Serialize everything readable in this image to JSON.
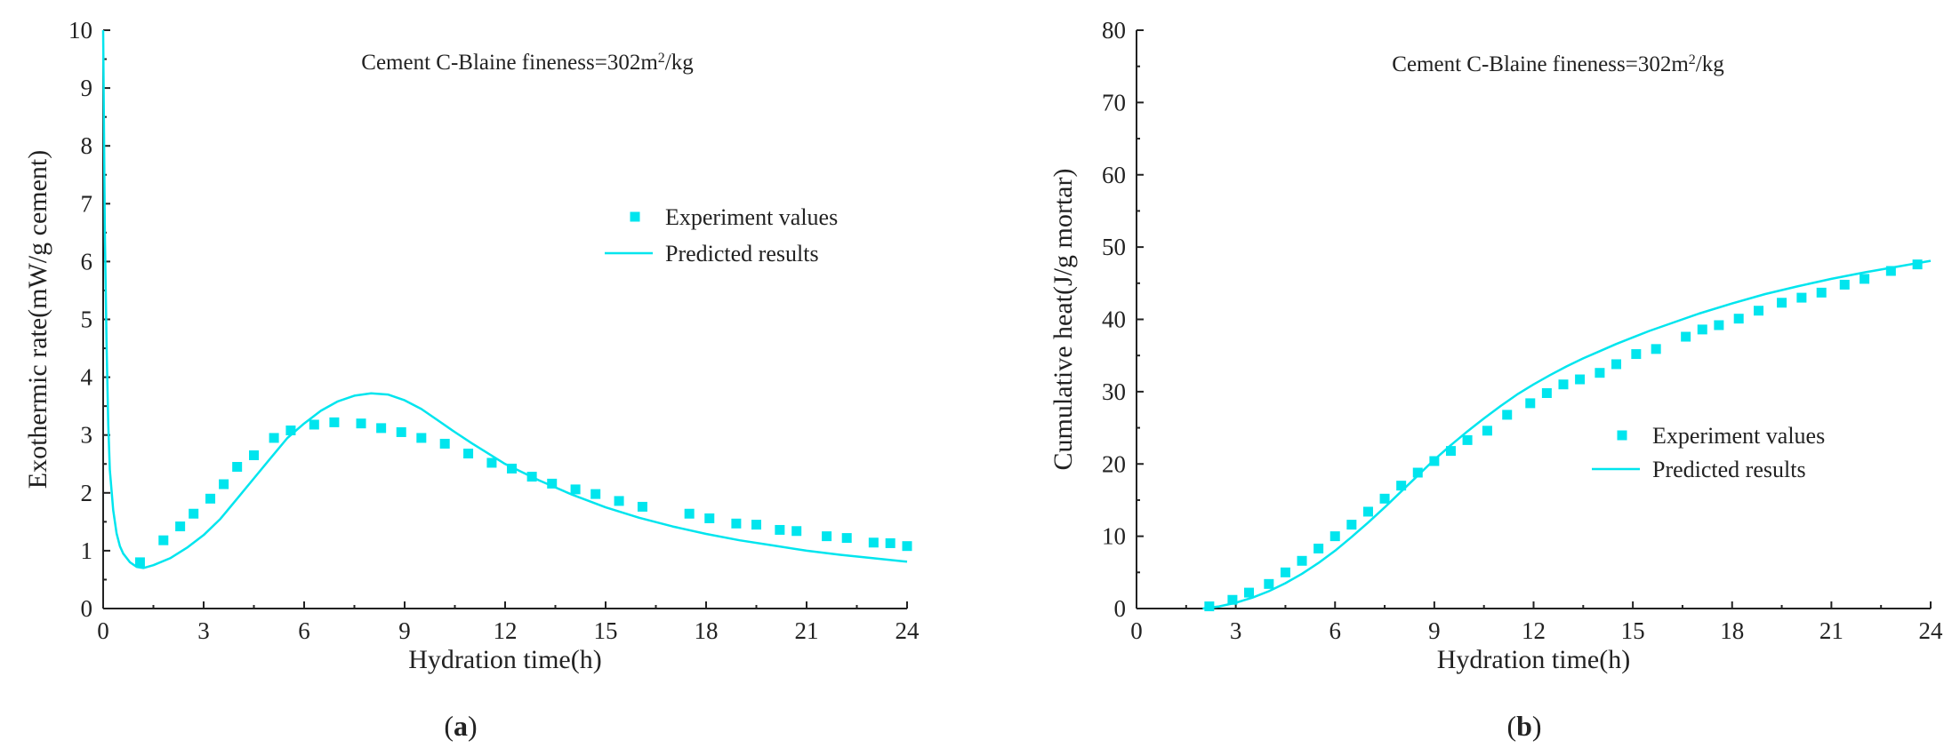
{
  "chart_data": [
    {
      "type": "scatter+line",
      "panel": "a",
      "panel_label": "a",
      "title_prefix": "Cement C-Blaine fineness=302m",
      "title_sup": "2",
      "title_suffix": "/kg",
      "xlabel": "Hydration time(h)",
      "ylabel": "Exothermic rate(mW/g cement)",
      "xlim": [
        0,
        24
      ],
      "ylim": [
        0,
        10
      ],
      "xticks": [
        0,
        3,
        6,
        9,
        12,
        15,
        18,
        21,
        24
      ],
      "yticks": [
        0,
        1,
        2,
        3,
        4,
        5,
        6,
        7,
        8,
        9,
        10
      ],
      "legend": {
        "position": "center-right",
        "entries": [
          "Experiment values",
          "Predicted results"
        ]
      },
      "colors": {
        "series": "#00e5ee",
        "axis": "#222222"
      },
      "series": [
        {
          "name": "Experiment values",
          "kind": "markers",
          "x": [
            1.1,
            1.8,
            2.3,
            2.7,
            3.2,
            3.6,
            4.0,
            4.5,
            5.1,
            5.6,
            6.3,
            6.9,
            7.7,
            8.3,
            8.9,
            9.5,
            10.2,
            10.9,
            11.6,
            12.2,
            12.8,
            13.4,
            14.1,
            14.7,
            15.4,
            16.1,
            17.5,
            18.1,
            18.9,
            19.5,
            20.2,
            20.7,
            21.6,
            22.2,
            23.0,
            23.5,
            24.0
          ],
          "y": [
            0.8,
            1.18,
            1.42,
            1.64,
            1.9,
            2.15,
            2.45,
            2.65,
            2.95,
            3.08,
            3.18,
            3.22,
            3.2,
            3.12,
            3.05,
            2.95,
            2.85,
            2.68,
            2.52,
            2.42,
            2.28,
            2.16,
            2.06,
            1.98,
            1.86,
            1.76,
            1.64,
            1.56,
            1.47,
            1.45,
            1.36,
            1.34,
            1.25,
            1.22,
            1.14,
            1.13,
            1.08
          ]
        },
        {
          "name": "Predicted results",
          "kind": "line",
          "x": [
            0.0,
            0.05,
            0.1,
            0.15,
            0.2,
            0.3,
            0.4,
            0.5,
            0.6,
            0.8,
            1.0,
            1.2,
            1.5,
            2.0,
            2.5,
            3.0,
            3.5,
            4.0,
            4.5,
            5.0,
            5.5,
            6.0,
            6.5,
            7.0,
            7.5,
            8.0,
            8.5,
            9.0,
            9.5,
            10.0,
            10.5,
            11.0,
            12.0,
            13.0,
            14.0,
            15.0,
            16.0,
            17.0,
            18.0,
            19.0,
            20.0,
            21.0,
            22.0,
            23.0,
            24.0
          ],
          "y": [
            10.0,
            6.5,
            4.6,
            3.2,
            2.4,
            1.7,
            1.3,
            1.08,
            0.95,
            0.8,
            0.72,
            0.7,
            0.75,
            0.87,
            1.05,
            1.27,
            1.55,
            1.9,
            2.25,
            2.6,
            2.95,
            3.2,
            3.42,
            3.58,
            3.68,
            3.72,
            3.7,
            3.6,
            3.45,
            3.25,
            3.05,
            2.86,
            2.5,
            2.22,
            1.97,
            1.75,
            1.57,
            1.42,
            1.29,
            1.18,
            1.09,
            1.0,
            0.93,
            0.87,
            0.81
          ]
        }
      ]
    },
    {
      "type": "scatter+line",
      "panel": "b",
      "panel_label": "b",
      "title_prefix": "Cement C-Blaine fineness=302m",
      "title_sup": "2",
      "title_suffix": "/kg",
      "xlabel": "Hydration time(h)",
      "ylabel": "Cumulative heat(J/g mortar)",
      "xlim": [
        0,
        24
      ],
      "ylim": [
        0,
        80
      ],
      "xticks": [
        0,
        3,
        6,
        9,
        12,
        15,
        18,
        21,
        24
      ],
      "yticks": [
        0,
        10,
        20,
        30,
        40,
        50,
        60,
        70,
        80
      ],
      "legend": {
        "position": "lower-right",
        "entries": [
          "Experiment values",
          "Predicted results"
        ]
      },
      "colors": {
        "series": "#00e5ee",
        "axis": "#222222"
      },
      "series": [
        {
          "name": "Experiment values",
          "kind": "markers",
          "x": [
            2.2,
            2.9,
            3.4,
            4.0,
            4.5,
            5.0,
            5.5,
            6.0,
            6.5,
            7.0,
            7.5,
            8.0,
            8.5,
            9.0,
            9.5,
            10.0,
            10.6,
            11.2,
            11.9,
            12.4,
            12.9,
            13.4,
            14.0,
            14.5,
            15.1,
            15.7,
            16.6,
            17.1,
            17.6,
            18.2,
            18.8,
            19.5,
            20.1,
            20.7,
            21.4,
            22.0,
            22.8,
            23.6
          ],
          "y": [
            0.3,
            1.2,
            2.2,
            3.4,
            5.0,
            6.6,
            8.3,
            10.0,
            11.6,
            13.4,
            15.2,
            17.0,
            18.8,
            20.4,
            21.8,
            23.3,
            24.6,
            26.8,
            28.4,
            29.8,
            31.0,
            31.7,
            32.6,
            33.8,
            35.2,
            35.9,
            37.6,
            38.6,
            39.2,
            40.1,
            41.2,
            42.3,
            43.0,
            43.7,
            44.8,
            45.6,
            46.7,
            47.6
          ]
        },
        {
          "name": "Predicted results",
          "kind": "line",
          "x": [
            2.0,
            2.5,
            3.0,
            3.5,
            4.0,
            4.5,
            5.0,
            5.5,
            6.0,
            6.5,
            7.0,
            7.5,
            8.0,
            8.5,
            9.0,
            9.5,
            10.0,
            10.5,
            11.0,
            11.5,
            12.0,
            12.5,
            13.0,
            13.5,
            14.0,
            14.5,
            15.0,
            15.5,
            16.0,
            17.0,
            18.0,
            19.0,
            20.0,
            21.0,
            22.0,
            23.0,
            24.0
          ],
          "y": [
            0.0,
            0.3,
            0.8,
            1.5,
            2.4,
            3.5,
            4.8,
            6.3,
            8.0,
            9.9,
            11.9,
            14.0,
            16.2,
            18.4,
            20.6,
            22.6,
            24.5,
            26.3,
            28.0,
            29.6,
            31.0,
            32.3,
            33.5,
            34.6,
            35.6,
            36.6,
            37.5,
            38.4,
            39.2,
            40.8,
            42.2,
            43.5,
            44.6,
            45.6,
            46.5,
            47.3,
            48.1
          ]
        }
      ]
    }
  ]
}
